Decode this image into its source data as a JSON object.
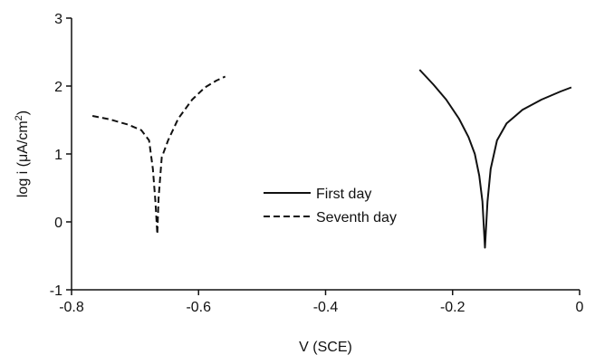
{
  "chart_data": {
    "type": "line",
    "xlabel": "V (SCE)",
    "ylabel": "log i (μA/cm²)",
    "ylabel_parts": {
      "main": "log i (μA/cm",
      "sup": "2",
      "close": ")"
    },
    "xlim": [
      -0.8,
      0
    ],
    "ylim": [
      -1,
      3
    ],
    "x_ticks": [
      -0.8,
      -0.6,
      -0.4,
      -0.2,
      0
    ],
    "x_tick_labels": [
      "-0.8",
      "-0.6",
      "-0.4",
      "-0.2",
      "0"
    ],
    "y_ticks": [
      -1,
      0,
      1,
      2,
      3
    ],
    "y_tick_labels": [
      "-1",
      "0",
      "1",
      "2",
      "3"
    ],
    "grid": false,
    "legend_position": "center",
    "series": [
      {
        "name": "First day",
        "style": "solid",
        "color": "#111111",
        "points": [
          [
            -0.252,
            2.24
          ],
          [
            -0.23,
            2.02
          ],
          [
            -0.21,
            1.8
          ],
          [
            -0.19,
            1.52
          ],
          [
            -0.175,
            1.25
          ],
          [
            -0.165,
            1.0
          ],
          [
            -0.158,
            0.68
          ],
          [
            -0.153,
            0.3
          ],
          [
            -0.149,
            -0.38
          ],
          [
            -0.145,
            0.3
          ],
          [
            -0.14,
            0.78
          ],
          [
            -0.13,
            1.2
          ],
          [
            -0.115,
            1.45
          ],
          [
            -0.09,
            1.65
          ],
          [
            -0.06,
            1.8
          ],
          [
            -0.03,
            1.92
          ],
          [
            -0.013,
            1.98
          ]
        ]
      },
      {
        "name": "Seventh day",
        "style": "dashed",
        "color": "#111111",
        "points": [
          [
            -0.767,
            1.56
          ],
          [
            -0.74,
            1.51
          ],
          [
            -0.71,
            1.43
          ],
          [
            -0.69,
            1.35
          ],
          [
            -0.678,
            1.2
          ],
          [
            -0.672,
            0.78
          ],
          [
            -0.668,
            0.3
          ],
          [
            -0.665,
            -0.18
          ],
          [
            -0.663,
            0.35
          ],
          [
            -0.658,
            0.95
          ],
          [
            -0.648,
            1.2
          ],
          [
            -0.632,
            1.52
          ],
          [
            -0.61,
            1.8
          ],
          [
            -0.59,
            1.98
          ],
          [
            -0.572,
            2.08
          ],
          [
            -0.558,
            2.14
          ]
        ]
      }
    ]
  }
}
